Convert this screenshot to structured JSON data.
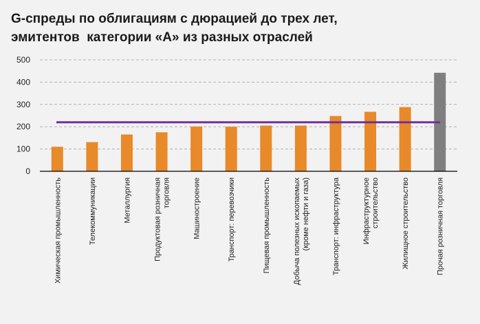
{
  "chart_data": {
    "type": "bar",
    "title": "G-спреды по облигациям с дюрацией до трех лет,\nэмитентов  категории «А» из разных отраслей",
    "categories": [
      [
        "Химическая  промышленность"
      ],
      [
        "Телекоммуникации"
      ],
      [
        "Металлургия"
      ],
      [
        "Продуктовая  розничная",
        "торговля"
      ],
      [
        "Машиностроение"
      ],
      [
        "Транспорт: перевозчики"
      ],
      [
        "Пищевая  промышленность"
      ],
      [
        "Добыча полезных ископаемых",
        "(кроме нефти и газа)"
      ],
      [
        "Транспорт: инфраструктура"
      ],
      [
        "Инфраструктурное",
        "строительство"
      ],
      [
        "Жилищное строительство"
      ],
      [
        "Прочая розничная  торговля"
      ]
    ],
    "values": [
      110,
      131,
      165,
      175,
      201,
      200,
      205,
      205,
      248,
      267,
      288,
      442
    ],
    "bar_colors": [
      "#e8892a",
      "#e8892a",
      "#e8892a",
      "#e8892a",
      "#e8892a",
      "#e8892a",
      "#e8892a",
      "#e8892a",
      "#e8892a",
      "#e8892a",
      "#e8892a",
      "#7f7f7f"
    ],
    "reference_line": {
      "value": 220,
      "color": "#7030a0"
    },
    "yticks": [
      0,
      100,
      200,
      300,
      400,
      500
    ],
    "ylim": [
      0,
      500
    ],
    "grid": true,
    "xlabel": "",
    "ylabel": ""
  }
}
